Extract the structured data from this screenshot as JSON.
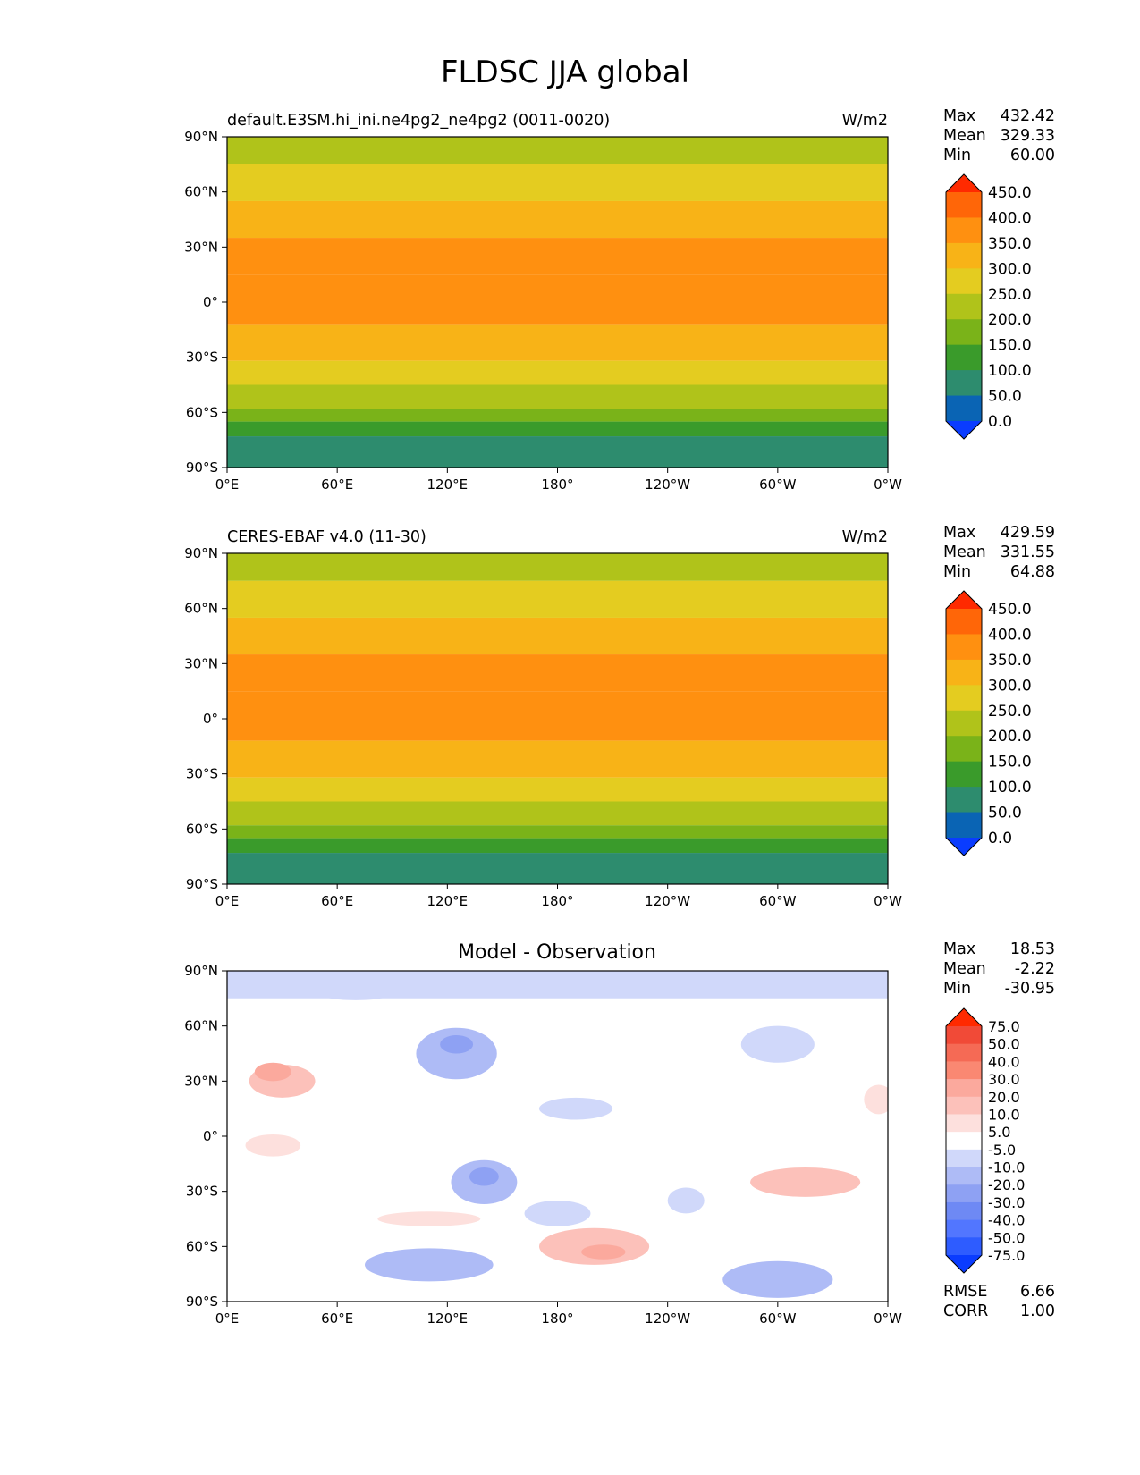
{
  "title": "FLDSC JJA global",
  "lat_ticks": [
    "90°N",
    "60°N",
    "30°N",
    "0°",
    "30°S",
    "60°S",
    "90°S"
  ],
  "lon_ticks": [
    "0°E",
    "60°E",
    "120°E",
    "180°",
    "120°W",
    "60°W",
    "0°W"
  ],
  "stat_labels": {
    "max": "Max",
    "mean": "Mean",
    "min": "Min",
    "rmse": "RMSE",
    "corr": "CORR"
  },
  "field_colors": [
    "#0a3cff",
    "#0a64b4",
    "#2d8c6e",
    "#3a9b2b",
    "#7ab319",
    "#b0c31a",
    "#e4cc20",
    "#f8b317",
    "#ff9010",
    "#ff6608",
    "#ff2a00"
  ],
  "diff_colors": [
    "#0a3cff",
    "#2e5cff",
    "#5276ff",
    "#6e89f4",
    "#8ea1f3",
    "#aebbf6",
    "#d0d8fa",
    "#ffffff",
    "#fde0dd",
    "#fcc1ba",
    "#fba99d",
    "#fa8872",
    "#f56a55",
    "#f14a37",
    "#ff2a00"
  ],
  "chart_data": [
    {
      "type": "heatmap",
      "title": "default.E3SM.hi_ini.ne4pg2_ne4pg2 (0011-0020)",
      "units": "W/m2",
      "stats": {
        "max": "432.42",
        "mean": "329.33",
        "min": "60.00"
      },
      "colorbar_levels": [
        "450.0",
        "400.0",
        "350.0",
        "300.0",
        "250.0",
        "200.0",
        "150.0",
        "100.0",
        "50.0",
        "0.0"
      ],
      "xlim": [
        0,
        360
      ],
      "ylim": [
        -90,
        90
      ],
      "lat_bands": [
        {
          "lat": [
            90,
            75
          ],
          "value": 225
        },
        {
          "lat": [
            75,
            55
          ],
          "value": 275
        },
        {
          "lat": [
            55,
            35
          ],
          "value": 325
        },
        {
          "lat": [
            35,
            15
          ],
          "value": 375
        },
        {
          "lat": [
            15,
            0
          ],
          "value": 385
        },
        {
          "lat": [
            0,
            -12
          ],
          "value": 375
        },
        {
          "lat": [
            -12,
            -32
          ],
          "value": 325
        },
        {
          "lat": [
            -32,
            -45
          ],
          "value": 275
        },
        {
          "lat": [
            -45,
            -58
          ],
          "value": 225
        },
        {
          "lat": [
            -58,
            -65
          ],
          "value": 175
        },
        {
          "lat": [
            -65,
            -73
          ],
          "value": 125
        },
        {
          "lat": [
            -73,
            -90
          ],
          "value": 75
        }
      ]
    },
    {
      "type": "heatmap",
      "title": "CERES-EBAF v4.0 (11-30)",
      "units": "W/m2",
      "stats": {
        "max": "429.59",
        "mean": "331.55",
        "min": "64.88"
      },
      "colorbar_levels": [
        "450.0",
        "400.0",
        "350.0",
        "300.0",
        "250.0",
        "200.0",
        "150.0",
        "100.0",
        "50.0",
        "0.0"
      ],
      "xlim": [
        0,
        360
      ],
      "ylim": [
        -90,
        90
      ],
      "lat_bands": [
        {
          "lat": [
            90,
            75
          ],
          "value": 225
        },
        {
          "lat": [
            75,
            55
          ],
          "value": 275
        },
        {
          "lat": [
            55,
            35
          ],
          "value": 325
        },
        {
          "lat": [
            35,
            15
          ],
          "value": 375
        },
        {
          "lat": [
            15,
            0
          ],
          "value": 385
        },
        {
          "lat": [
            0,
            -12
          ],
          "value": 375
        },
        {
          "lat": [
            -12,
            -32
          ],
          "value": 325
        },
        {
          "lat": [
            -32,
            -45
          ],
          "value": 275
        },
        {
          "lat": [
            -45,
            -58
          ],
          "value": 225
        },
        {
          "lat": [
            -58,
            -65
          ],
          "value": 175
        },
        {
          "lat": [
            -65,
            -73
          ],
          "value": 125
        },
        {
          "lat": [
            -73,
            -90
          ],
          "value": 75
        }
      ]
    },
    {
      "type": "heatmap",
      "title": "Model - Observation",
      "units": "",
      "stats": {
        "max": "18.53",
        "mean": "-2.22",
        "min": "-30.95"
      },
      "rmse": "6.66",
      "corr": "1.00",
      "colorbar_levels": [
        "75.0",
        "50.0",
        "40.0",
        "30.0",
        "20.0",
        "10.0",
        "5.0",
        "-5.0",
        "-10.0",
        "-20.0",
        "-30.0",
        "-40.0",
        "-50.0",
        "-75.0"
      ],
      "xlim": [
        0,
        360
      ],
      "ylim": [
        -90,
        90
      ],
      "lat_bands": [
        {
          "lat": [
            90,
            75
          ],
          "value": -7
        },
        {
          "lat": [
            75,
            68
          ],
          "value": 0
        },
        {
          "lat": [
            68,
            -68
          ],
          "value": 0
        },
        {
          "lat": [
            -68,
            -90
          ],
          "value": 0
        }
      ],
      "anomalies": [
        {
          "lon": 30,
          "lat": 30,
          "rx": 18,
          "ry": 9,
          "value": 12
        },
        {
          "lon": 25,
          "lat": 35,
          "rx": 10,
          "ry": 5,
          "value": 22
        },
        {
          "lon": 125,
          "lat": 45,
          "rx": 22,
          "ry": 14,
          "value": -12
        },
        {
          "lon": 125,
          "lat": 50,
          "rx": 9,
          "ry": 5,
          "value": -25
        },
        {
          "lon": 140,
          "lat": -25,
          "rx": 18,
          "ry": 12,
          "value": -12
        },
        {
          "lon": 140,
          "lat": -22,
          "rx": 8,
          "ry": 5,
          "value": -25
        },
        {
          "lon": 25,
          "lat": -5,
          "rx": 15,
          "ry": 6,
          "value": 8
        },
        {
          "lon": 110,
          "lat": -45,
          "rx": 28,
          "ry": 4,
          "value": 8
        },
        {
          "lon": 200,
          "lat": -60,
          "rx": 30,
          "ry": 10,
          "value": 10
        },
        {
          "lon": 205,
          "lat": -63,
          "rx": 12,
          "ry": 4,
          "value": 22
        },
        {
          "lon": 315,
          "lat": -25,
          "rx": 30,
          "ry": 8,
          "value": 10
        },
        {
          "lon": 110,
          "lat": -70,
          "rx": 35,
          "ry": 9,
          "value": -12
        },
        {
          "lon": 300,
          "lat": -78,
          "rx": 30,
          "ry": 10,
          "value": -18
        },
        {
          "lon": 190,
          "lat": 15,
          "rx": 20,
          "ry": 6,
          "value": -7
        },
        {
          "lon": 180,
          "lat": -42,
          "rx": 18,
          "ry": 7,
          "value": -7
        },
        {
          "lon": 250,
          "lat": -35,
          "rx": 10,
          "ry": 7,
          "value": -7
        },
        {
          "lon": 355,
          "lat": 20,
          "rx": 8,
          "ry": 8,
          "value": 8
        },
        {
          "lon": 70,
          "lat": 80,
          "rx": 25,
          "ry": 6,
          "value": -7
        },
        {
          "lon": 300,
          "lat": 50,
          "rx": 20,
          "ry": 10,
          "value": -7
        }
      ]
    }
  ]
}
